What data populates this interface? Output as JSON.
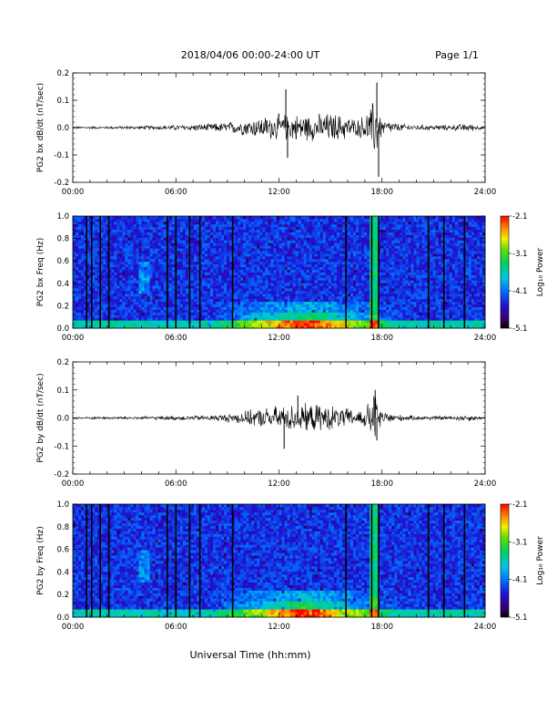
{
  "header": {
    "title": "2018/04/06  00:00-24:00 UT",
    "page": "Page 1/1"
  },
  "footer": {
    "xlabel": "Universal Time (hh:mm)"
  },
  "colorbar": {
    "label": "Log₁₀ Power",
    "ticks": [
      "-2.1",
      "-3.1",
      "-4.1",
      "-5.1"
    ]
  },
  "chart_data": [
    {
      "type": "line",
      "ylabel": "PG2 bx dB/dt (nT/sec)",
      "xlim": [
        0,
        24
      ],
      "ylim": [
        -0.2,
        0.2
      ],
      "y_ticks": [
        "0.2",
        "0.1",
        "0.0",
        "-0.1",
        "-0.2"
      ],
      "x_ticks": [
        "00:00",
        "06:00",
        "12:00",
        "18:00",
        "24:00"
      ],
      "envelope": {
        "x_hours": [
          0,
          2,
          4,
          6,
          8,
          9,
          10,
          11,
          12,
          13,
          14,
          15,
          16,
          16.5,
          17,
          17.4,
          17.6,
          17.8,
          18,
          19,
          20,
          22,
          23,
          23.5,
          24
        ],
        "amplitude": [
          0.004,
          0.005,
          0.007,
          0.01,
          0.015,
          0.02,
          0.03,
          0.04,
          0.05,
          0.05,
          0.05,
          0.055,
          0.045,
          0.03,
          0.05,
          0.08,
          0.14,
          0.07,
          0.03,
          0.015,
          0.01,
          0.01,
          0.015,
          0.01,
          0.005
        ]
      },
      "spikes": [
        {
          "x": 12.4,
          "y": 0.14
        },
        {
          "x": 12.5,
          "y": -0.11
        },
        {
          "x": 17.7,
          "y": 0.165
        },
        {
          "x": 17.8,
          "y": -0.18
        }
      ]
    },
    {
      "type": "heatmap",
      "ylabel": "PG2 bx Freq (Hz)",
      "xlim": [
        0,
        24
      ],
      "ylim": [
        0,
        1.0
      ],
      "y_ticks": [
        "1.0",
        "0.8",
        "0.6",
        "0.4",
        "0.2",
        "0.0"
      ],
      "x_ticks": [
        "00:00",
        "06:00",
        "12:00",
        "18:00",
        "24:00"
      ],
      "zlim": [
        -5.1,
        -2.1
      ],
      "data_gaps_hours": [
        0.8,
        1.1,
        1.6,
        2.1,
        5.5,
        6.0,
        6.8,
        7.4,
        9.3,
        15.9,
        17.4,
        17.8,
        20.7,
        21.6,
        22.8
      ]
    },
    {
      "type": "line",
      "ylabel": "PG2 by dB/dt (nT/sec)",
      "xlim": [
        0,
        24
      ],
      "ylim": [
        -0.2,
        0.2
      ],
      "y_ticks": [
        "0.2",
        "0.1",
        "0.0",
        "-0.1",
        "-0.2"
      ],
      "x_ticks": [
        "00:00",
        "06:00",
        "12:00",
        "18:00",
        "24:00"
      ],
      "envelope": {
        "x_hours": [
          0,
          2,
          4,
          6,
          8,
          9,
          10,
          11,
          12,
          13,
          14,
          15,
          16,
          16.5,
          17,
          17.4,
          17.6,
          17.8,
          18,
          19,
          20,
          22,
          23,
          23.5,
          24
        ],
        "amplitude": [
          0.004,
          0.005,
          0.006,
          0.008,
          0.01,
          0.015,
          0.025,
          0.035,
          0.045,
          0.05,
          0.05,
          0.045,
          0.035,
          0.025,
          0.04,
          0.07,
          0.1,
          0.06,
          0.025,
          0.012,
          0.008,
          0.008,
          0.012,
          0.008,
          0.005
        ]
      },
      "spikes": [
        {
          "x": 12.3,
          "y": -0.11
        },
        {
          "x": 13.1,
          "y": 0.08
        },
        {
          "x": 17.6,
          "y": 0.1
        },
        {
          "x": 17.7,
          "y": -0.08
        }
      ]
    },
    {
      "type": "heatmap",
      "ylabel": "PG2 by Freq (Hz)",
      "xlim": [
        0,
        24
      ],
      "ylim": [
        0,
        1.0
      ],
      "y_ticks": [
        "1.0",
        "0.8",
        "0.6",
        "0.4",
        "0.2",
        "0.0"
      ],
      "x_ticks": [
        "00:00",
        "06:00",
        "12:00",
        "18:00",
        "24:00"
      ],
      "zlim": [
        -5.1,
        -2.1
      ],
      "data_gaps_hours": [
        0.8,
        1.1,
        1.6,
        2.1,
        5.5,
        6.0,
        6.8,
        7.4,
        9.3,
        15.9,
        17.4,
        17.8,
        20.7,
        21.6,
        22.8
      ]
    }
  ]
}
